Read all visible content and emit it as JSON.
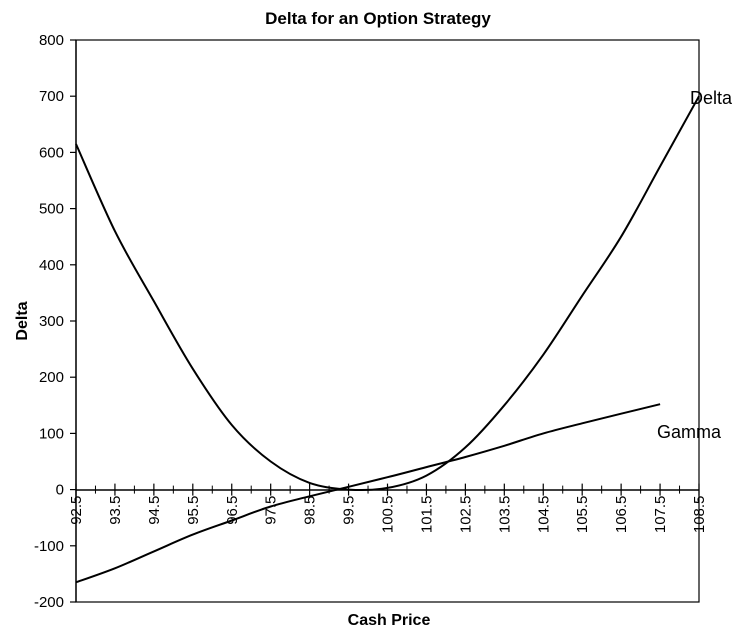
{
  "chart_data": {
    "type": "line",
    "title": "Delta for an Option Strategy",
    "xlabel": "Cash Price",
    "ylabel": "Delta",
    "ylim": [
      -200,
      800
    ],
    "y_ticks": [
      -200,
      -100,
      0,
      100,
      200,
      300,
      400,
      500,
      600,
      700,
      800
    ],
    "x_ticks": [
      "92.5",
      "93.5",
      "94.5",
      "95.5",
      "96.5",
      "97.5",
      "98.5",
      "99.5",
      "100.5",
      "101.5",
      "102.5",
      "103.5",
      "104.5",
      "105.5",
      "106.5",
      "107.5",
      "108.5"
    ],
    "xlim": [
      92.5,
      108.5
    ],
    "grid": false,
    "legend": "none",
    "series": [
      {
        "name": "Delta",
        "x": [
          92.5,
          93.5,
          94.5,
          95.5,
          96.5,
          97.5,
          98.5,
          99.5,
          100.5,
          101.5,
          102.5,
          103.5,
          104.5,
          105.5,
          106.5,
          107.5,
          108.5
        ],
        "y": [
          615,
          460,
          335,
          215,
          115,
          50,
          12,
          0,
          3,
          25,
          75,
          150,
          240,
          345,
          450,
          575,
          700
        ]
      },
      {
        "name": "Gamma",
        "x": [
          92.5,
          93.5,
          94.5,
          95.5,
          96.5,
          97.5,
          98.5,
          99.5,
          100.5,
          101.5,
          102.5,
          103.5,
          104.5,
          105.5,
          106.5,
          107.5
        ],
        "y": [
          -165,
          -140,
          -110,
          -80,
          -55,
          -30,
          -12,
          5,
          22,
          40,
          58,
          78,
          100,
          118,
          135,
          152
        ]
      }
    ]
  }
}
